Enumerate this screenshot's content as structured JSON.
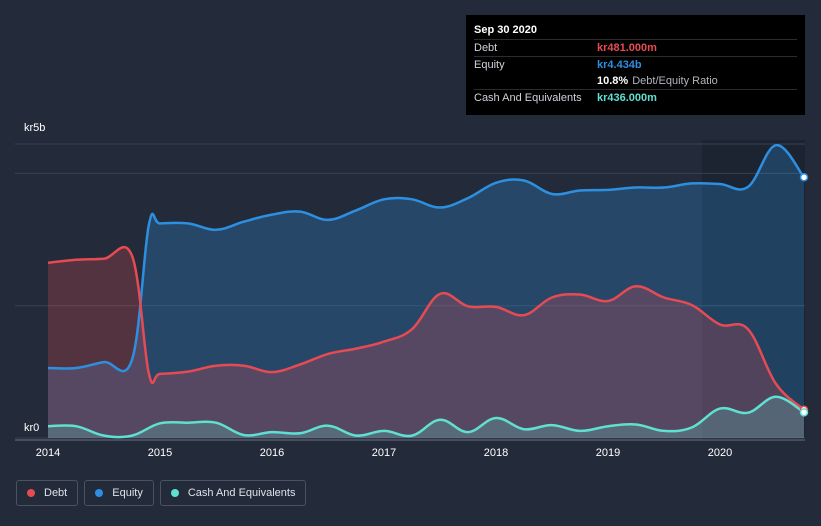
{
  "colors": {
    "background": "#232b3a",
    "debt": "#e64b54",
    "equity": "#2d8fe0",
    "cash": "#5fe0d0"
  },
  "tooltip": {
    "date": "Sep 30 2020",
    "debt_label": "Debt",
    "debt_value": "kr481.000m",
    "equity_label": "Equity",
    "equity_value": "kr4.434b",
    "ratio_value": "10.8%",
    "ratio_label": "Debt/Equity Ratio",
    "cash_label": "Cash And Equivalents",
    "cash_value": "kr436.000m"
  },
  "legend": [
    {
      "name": "debt",
      "label": "Debt",
      "color": "#e64b54"
    },
    {
      "name": "equity",
      "label": "Equity",
      "color": "#2d8fe0"
    },
    {
      "name": "cash",
      "label": "Cash And Equivalents",
      "color": "#5fe0d0"
    }
  ],
  "chart_data": {
    "type": "area",
    "title": "",
    "xlabel": "",
    "ylabel": "",
    "y_axis_labels": [
      "kr5b",
      "kr0"
    ],
    "ylim": [
      0,
      5000
    ],
    "xlim": [
      2014.0,
      2020.75
    ],
    "x_ticks": [
      "2014",
      "2015",
      "2016",
      "2017",
      "2018",
      "2019",
      "2020"
    ],
    "grid": true,
    "series": [
      {
        "name": "Equity",
        "color": "#2d8fe0",
        "x": [
          2014.0,
          2014.25,
          2014.5,
          2014.75,
          2014.9,
          2015.0,
          2015.25,
          2015.5,
          2015.75,
          2016.0,
          2016.25,
          2016.5,
          2016.75,
          2017.0,
          2017.25,
          2017.5,
          2017.75,
          2018.0,
          2018.25,
          2018.5,
          2018.75,
          2019.0,
          2019.25,
          2019.5,
          2019.75,
          2020.0,
          2020.25,
          2020.5,
          2020.75
        ],
        "values": [
          1190,
          1190,
          1290,
          1330,
          3620,
          3650,
          3650,
          3540,
          3680,
          3800,
          3850,
          3710,
          3870,
          4060,
          4060,
          3920,
          4080,
          4340,
          4380,
          4150,
          4210,
          4220,
          4260,
          4260,
          4330,
          4320,
          4270,
          4980,
          4434
        ]
      },
      {
        "name": "Debt",
        "color": "#e64b54",
        "x": [
          2014.0,
          2014.25,
          2014.5,
          2014.75,
          2014.9,
          2015.0,
          2015.25,
          2015.5,
          2015.75,
          2016.0,
          2016.25,
          2016.5,
          2016.75,
          2017.0,
          2017.25,
          2017.5,
          2017.75,
          2018.0,
          2018.25,
          2018.5,
          2018.75,
          2019.0,
          2019.25,
          2019.5,
          2019.75,
          2020.0,
          2020.25,
          2020.5,
          2020.75
        ],
        "values": [
          2980,
          3030,
          3050,
          3100,
          1100,
          1090,
          1130,
          1230,
          1230,
          1120,
          1250,
          1430,
          1520,
          1640,
          1850,
          2450,
          2240,
          2230,
          2090,
          2390,
          2440,
          2330,
          2580,
          2390,
          2260,
          1930,
          1850,
          920,
          481
        ]
      },
      {
        "name": "Cash And Equivalents",
        "color": "#5fe0d0",
        "x": [
          2014.0,
          2014.25,
          2014.5,
          2014.75,
          2015.0,
          2015.25,
          2015.5,
          2015.75,
          2016.0,
          2016.25,
          2016.5,
          2016.75,
          2017.0,
          2017.25,
          2017.5,
          2017.75,
          2018.0,
          2018.25,
          2018.5,
          2018.75,
          2019.0,
          2019.25,
          2019.5,
          2019.75,
          2020.0,
          2020.25,
          2020.5,
          2020.75
        ],
        "values": [
          200,
          200,
          40,
          40,
          250,
          260,
          260,
          50,
          100,
          80,
          210,
          40,
          120,
          40,
          310,
          100,
          340,
          150,
          220,
          120,
          200,
          230,
          120,
          180,
          500,
          430,
          700,
          436
        ]
      }
    ]
  }
}
